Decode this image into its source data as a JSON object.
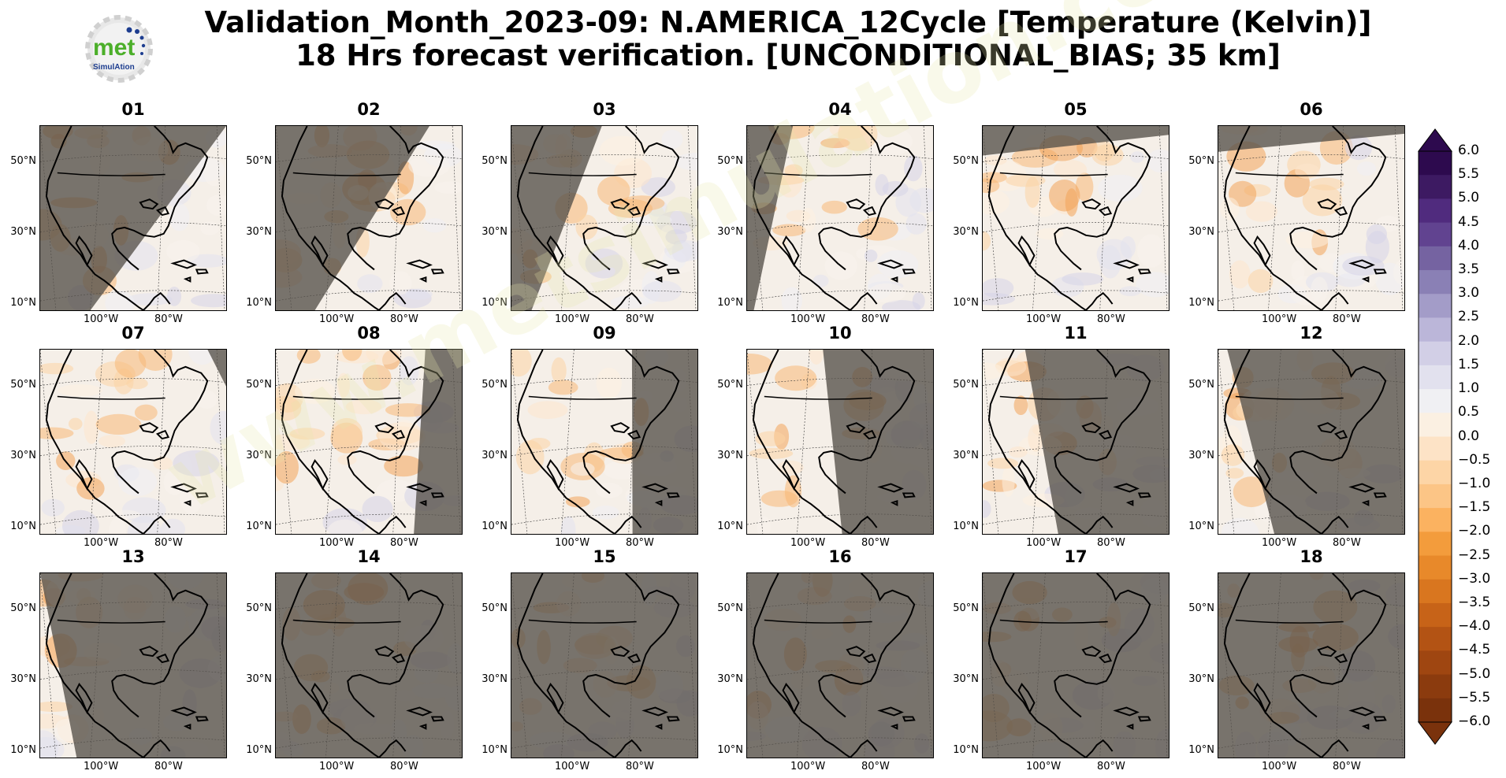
{
  "title": {
    "line1": "Validation_Month_2023-09: N.AMERICA_12Cycle [Temperature (Kelvin)]",
    "line2": "18 Hrs forecast verification. [UNCONDITIONAL_BIAS; 35 km]"
  },
  "logo": {
    "text": "met",
    "subtext": "SimulAtion"
  },
  "watermark": "www.metsimulation.com",
  "lat_labels": [
    "50°N",
    "30°N",
    "10°N"
  ],
  "lon_labels": [
    "100°W",
    "80°W"
  ],
  "panels": [
    {
      "label": "01",
      "night_fraction": 0.45,
      "side": "west"
    },
    {
      "label": "02",
      "night_fraction": 0.35,
      "side": "west"
    },
    {
      "label": "03",
      "night_fraction": 0.18,
      "side": "west"
    },
    {
      "label": "04",
      "night_fraction": 0.06,
      "side": "west"
    },
    {
      "label": "05",
      "night_fraction": 0.02,
      "side": "north"
    },
    {
      "label": "06",
      "night_fraction": 0.01,
      "side": "north"
    },
    {
      "label": "07",
      "night_fraction": 0.04,
      "side": "east"
    },
    {
      "label": "08",
      "night_fraction": 0.12,
      "side": "east"
    },
    {
      "label": "09",
      "night_fraction": 0.25,
      "side": "east"
    },
    {
      "label": "10",
      "night_fraction": 0.45,
      "side": "east"
    },
    {
      "label": "11",
      "night_fraction": 0.6,
      "side": "east"
    },
    {
      "label": "12",
      "night_fraction": 0.75,
      "side": "east"
    },
    {
      "label": "13",
      "night_fraction": 0.9,
      "side": "east"
    },
    {
      "label": "14",
      "night_fraction": 1.0,
      "side": "east"
    },
    {
      "label": "15",
      "night_fraction": 1.0,
      "side": "east"
    },
    {
      "label": "16",
      "night_fraction": 1.0,
      "side": "east"
    },
    {
      "label": "17",
      "night_fraction": 1.0,
      "side": "east"
    },
    {
      "label": "18",
      "night_fraction": 1.0,
      "side": "east"
    }
  ],
  "colorbar": {
    "ticks": [
      "6.0",
      "5.5",
      "5.0",
      "4.5",
      "4.0",
      "3.5",
      "3.0",
      "2.5",
      "2.0",
      "1.5",
      "1.0",
      "0.5",
      "0.0",
      "−0.5",
      "−1.0",
      "−1.5",
      "−2.0",
      "−2.5",
      "−3.0",
      "−3.5",
      "−4.0",
      "−4.5",
      "−5.0",
      "−5.5",
      "−6.0"
    ],
    "colors": [
      "#2d0a4e",
      "#3d1a62",
      "#502b7e",
      "#614390",
      "#7563a1",
      "#8a80b5",
      "#a39cc8",
      "#bbb6d9",
      "#d2cfe6",
      "#e2e1ee",
      "#f0f0f3",
      "#fbf0e2",
      "#fde3c6",
      "#fdd5a6",
      "#fcc586",
      "#fbb260",
      "#f39c3c",
      "#e8892a",
      "#d9761f",
      "#c76318",
      "#b35314",
      "#9f4611",
      "#8b3b0e",
      "#7a320c"
    ]
  },
  "colors": {
    "night": "#555049",
    "land_warm": "#f7c68f",
    "sea_cool": "#e7e6f1"
  }
}
